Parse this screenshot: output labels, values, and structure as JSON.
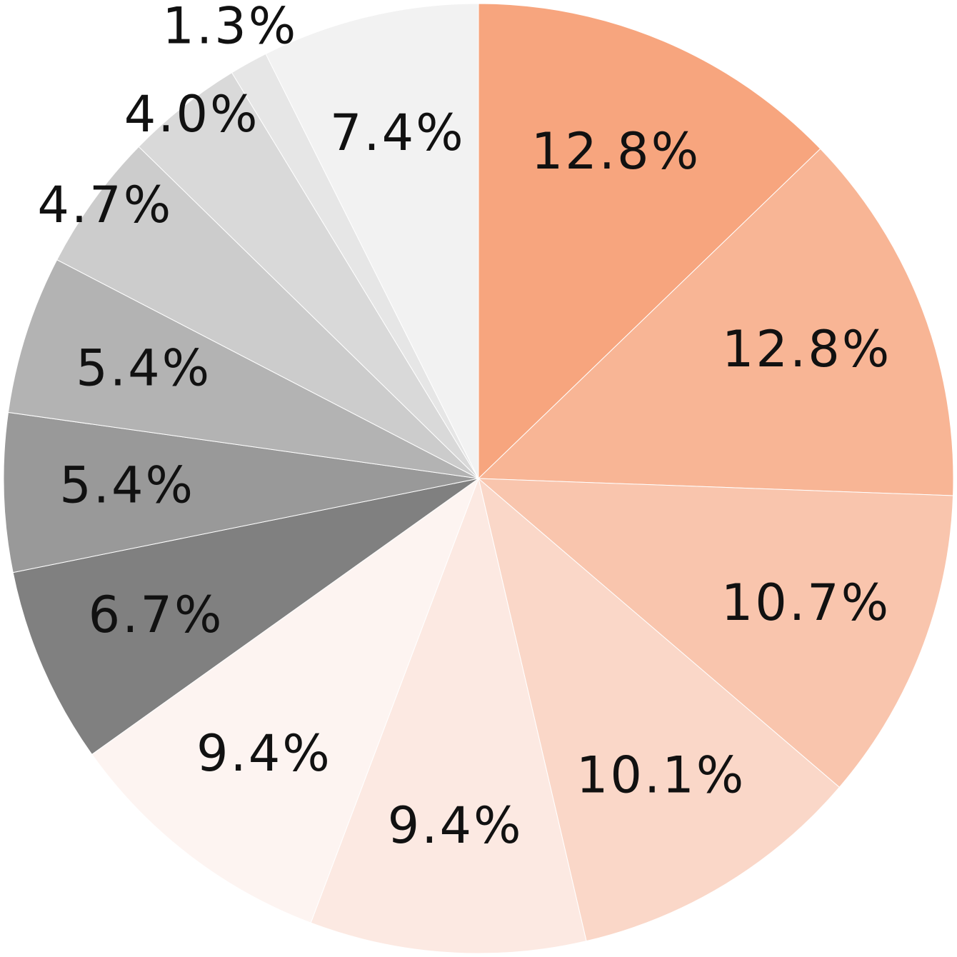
{
  "chart_data": {
    "type": "pie",
    "values": [
      12.8,
      12.8,
      10.7,
      10.1,
      9.4,
      9.4,
      6.7,
      5.4,
      5.4,
      4.7,
      4.0,
      1.3,
      7.4
    ],
    "value_labels": [
      "12.8%",
      "12.8%",
      "10.7%",
      "10.1%",
      "9.4%",
      "9.4%",
      "6.7%",
      "5.4%",
      "5.4%",
      "4.7%",
      "4.0%",
      "1.3%",
      "7.4%"
    ],
    "colors": [
      "#f7a57e",
      "#f8b595",
      "#f9c5ad",
      "#fad7c8",
      "#fce9e2",
      "#fdf4f1",
      "#808080",
      "#999999",
      "#b3b3b3",
      "#cccccc",
      "#d9d9d9",
      "#e6e6e6",
      "#f2f2f2"
    ]
  }
}
